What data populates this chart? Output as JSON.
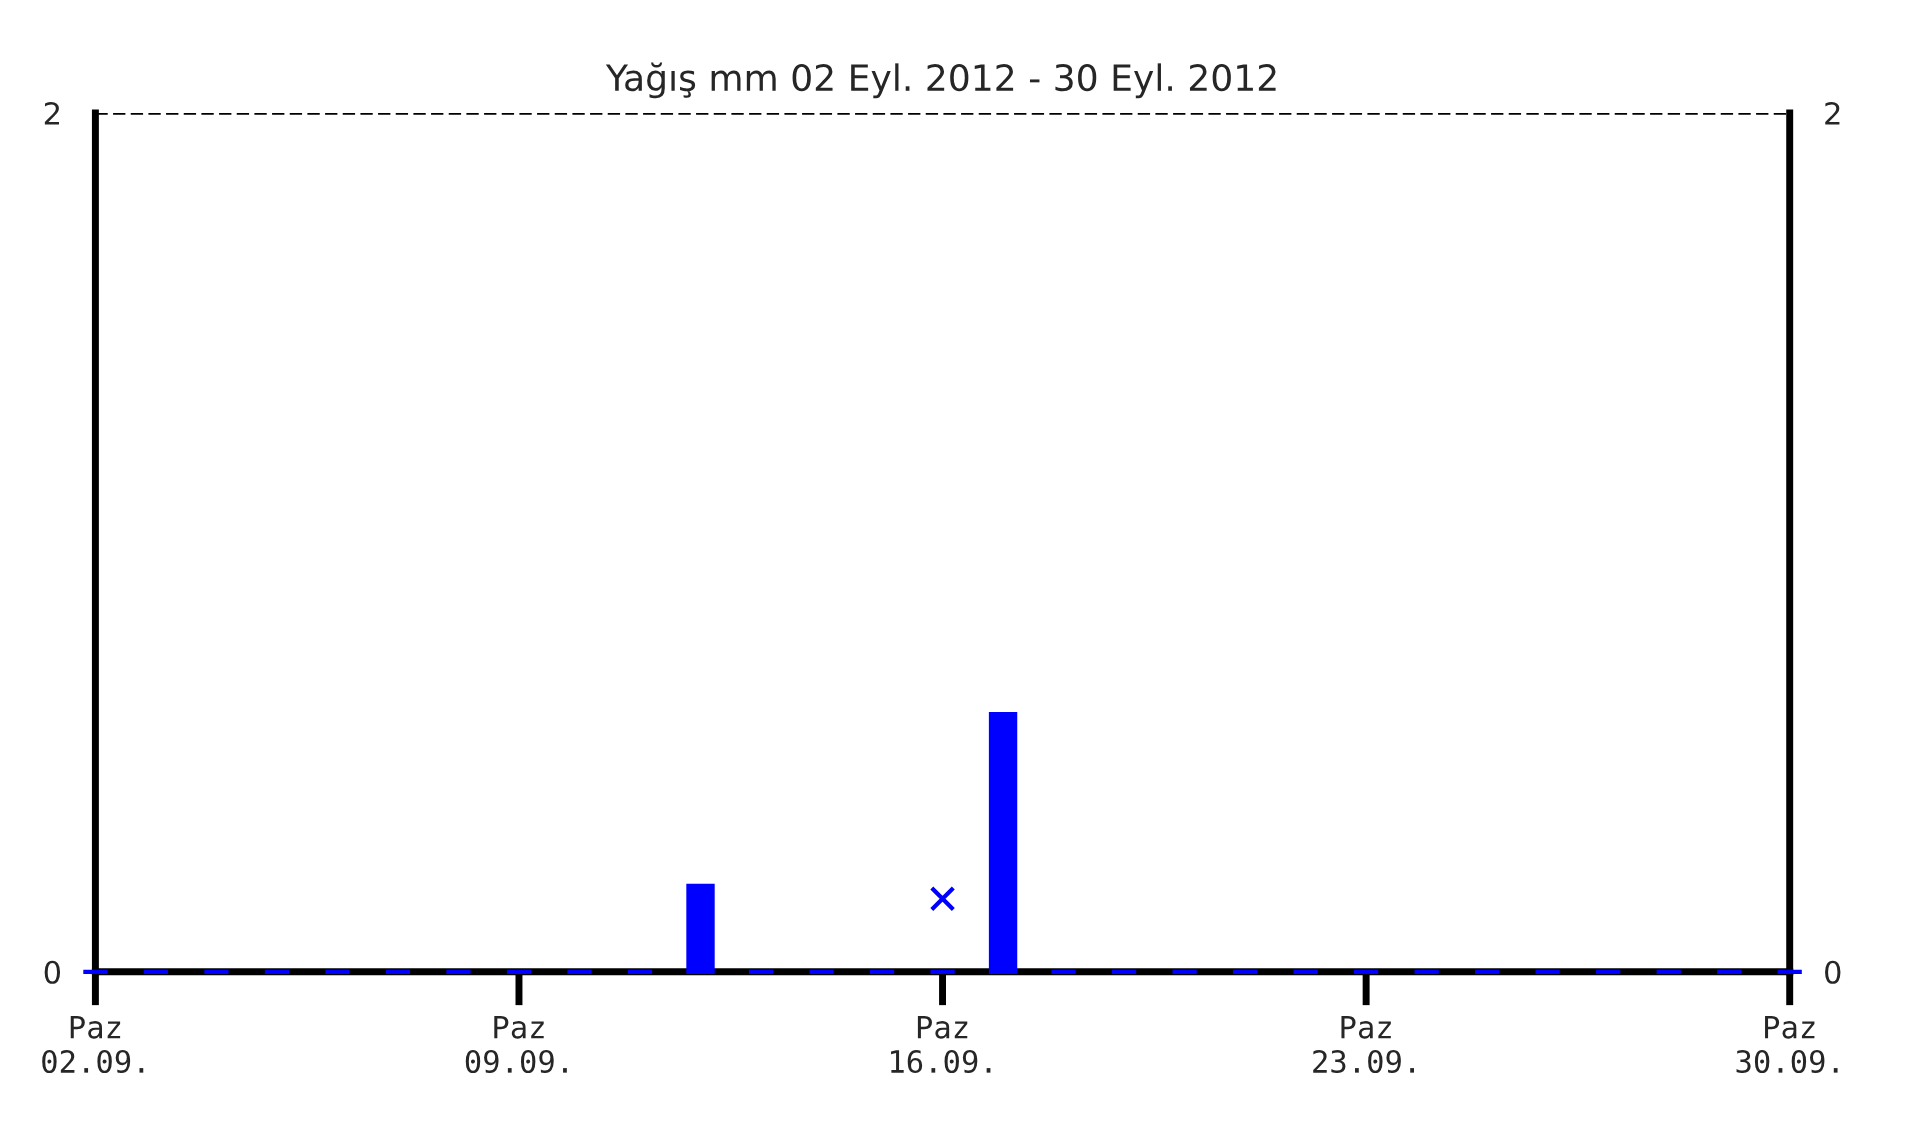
{
  "chart_data": {
    "type": "bar",
    "title": "Yağış mm 02 Eyl. 2012 - 30 Eyl. 2012",
    "x": [
      "2012-09-02",
      "2012-09-03",
      "2012-09-04",
      "2012-09-05",
      "2012-09-06",
      "2012-09-07",
      "2012-09-08",
      "2012-09-09",
      "2012-09-10",
      "2012-09-11",
      "2012-09-12",
      "2012-09-13",
      "2012-09-14",
      "2012-09-15",
      "2012-09-16",
      "2012-09-17",
      "2012-09-18",
      "2012-09-19",
      "2012-09-20",
      "2012-09-21",
      "2012-09-22",
      "2012-09-23",
      "2012-09-24",
      "2012-09-25",
      "2012-09-26",
      "2012-09-27",
      "2012-09-28",
      "2012-09-29",
      "2012-09-30"
    ],
    "series": [
      {
        "color": "#0000ff",
        "values": [
          0,
          0,
          0,
          0,
          0,
          0,
          0,
          0,
          0,
          0,
          0.2,
          0,
          0,
          0,
          0,
          0.6,
          0,
          0,
          0,
          0,
          0,
          0,
          0,
          0,
          0,
          0,
          0,
          0,
          0
        ]
      },
      {
        "type": "scatter",
        "color": "#0000ff",
        "marker": "cross",
        "x": [
          "2012-09-16"
        ],
        "values": [
          0.17
        ]
      }
    ],
    "xlim": [
      "2012-09-02",
      "2012-09-30"
    ],
    "xticks": [
      {
        "value": "2012-09-02",
        "label": "Paz\n02.09."
      },
      {
        "value": "2012-09-09",
        "label": "Paz\n09.09."
      },
      {
        "value": "2012-09-16",
        "label": "Paz\n16.09."
      },
      {
        "value": "2012-09-23",
        "label": "Paz\n23.09."
      },
      {
        "value": "2012-09-30",
        "label": "Paz\n30.09."
      }
    ],
    "ylim": [
      0,
      2
    ],
    "yticks": [
      0,
      2
    ],
    "y2lim": [
      0,
      2
    ],
    "y2ticks": [
      0,
      2
    ],
    "ref_lines": [
      {
        "axis": "y",
        "value": 2,
        "color": "#000000",
        "line_style": "dashed"
      }
    ],
    "grid": false,
    "legend": false
  }
}
